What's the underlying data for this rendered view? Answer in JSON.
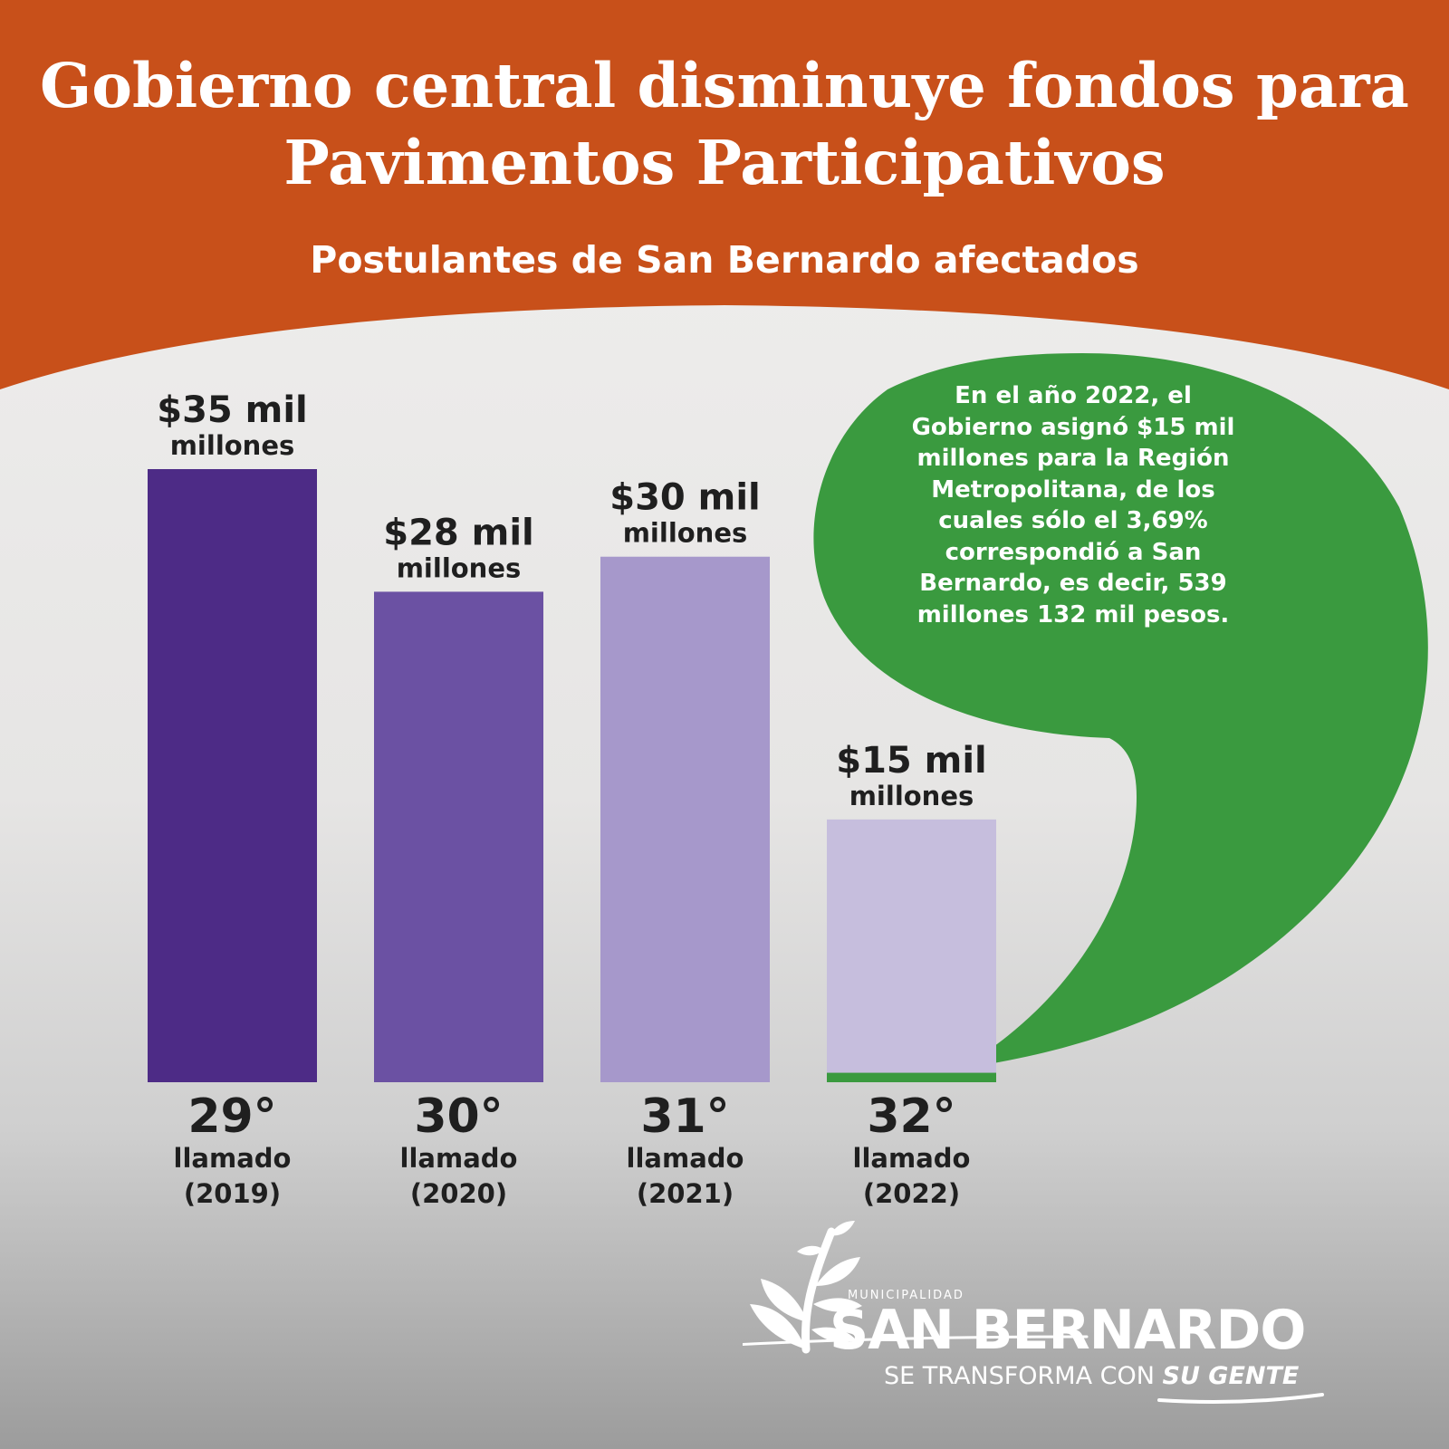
{
  "header": {
    "title_line1": "Gobierno central disminuye fondos para",
    "title_line2": "Pavimentos Participativos",
    "subtitle": "Postulantes de San Bernardo afectados"
  },
  "colors": {
    "header_orange": "#c8501a",
    "bubble_green": "#3a9a3f",
    "bar_29": "#4d2b86",
    "bar_30": "#6b51a3",
    "bar_31": "#a698cb",
    "bar_32": "#c6bedd",
    "label_dark": "#1f1f1f"
  },
  "chart_data": {
    "type": "bar",
    "categories": [
      "29°",
      "30°",
      "31°",
      "32°"
    ],
    "category_sublabels": [
      [
        "llamado",
        "(2019)"
      ],
      [
        "llamado",
        "(2020)"
      ],
      [
        "llamado",
        "(2021)"
      ],
      [
        "llamado",
        "(2022)"
      ]
    ],
    "values": [
      35000,
      28000,
      30000,
      15000
    ],
    "value_labels": [
      [
        "$35 mil",
        "millones"
      ],
      [
        "$28 mil",
        "millones"
      ],
      [
        "$30 mil",
        "millones"
      ],
      [
        "$15 mil",
        "millones"
      ]
    ],
    "highlight": {
      "category": "32°",
      "value": 539.132
    },
    "title": "Gobierno central disminuye fondos para Pavimentos Participativos",
    "xlabel": "",
    "ylabel": "",
    "ylim": [
      0,
      35000
    ],
    "grid": false,
    "legend": "none"
  },
  "callout": {
    "lines": [
      "En el año 2022, el",
      "Gobierno asignó $15 mil",
      "millones para la Región",
      "Metropolitana, de los",
      "cuales sólo el 3,69%",
      "correspondió a San",
      "Bernardo, es decir, 539",
      "millones 132 mil pesos."
    ]
  },
  "logo": {
    "municipalidad": "MUNICIPALIDAD",
    "name": "SAN BERNARDO",
    "slogan_prefix": "SE TRANSFORMA CON ",
    "slogan_emphasis": "SU GENTE"
  }
}
